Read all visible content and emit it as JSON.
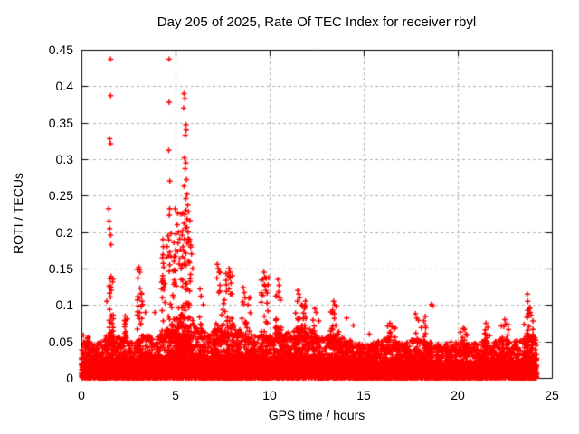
{
  "figure": {
    "background": "#ffffff",
    "border_color": "#000000",
    "grid_color": "#b0b0b0",
    "text_color": "#000000",
    "title_color": "#000000"
  },
  "chart_data": {
    "type": "scatter",
    "title": "Day 205 of 2025, Rate Of TEC Index for receiver rbyl",
    "xlabel": "GPS time / hours",
    "ylabel": "ROTI / TECUs",
    "xlim": [
      0,
      25
    ],
    "ylim": [
      0,
      0.45
    ],
    "grid": true,
    "legend": "none",
    "marker": "plus-icon",
    "marker_color": "#ff0000",
    "xticks": [
      {
        "v": 0,
        "label": "0"
      },
      {
        "v": 5,
        "label": "5"
      },
      {
        "v": 10,
        "label": "10"
      },
      {
        "v": 15,
        "label": "15"
      },
      {
        "v": 20,
        "label": "20"
      },
      {
        "v": 25,
        "label": "25"
      }
    ],
    "yticks": [
      {
        "v": 0,
        "label": "0"
      },
      {
        "v": 0.05,
        "label": "0.05"
      },
      {
        "v": 0.1,
        "label": "0.1"
      },
      {
        "v": 0.15,
        "label": "0.15"
      },
      {
        "v": 0.2,
        "label": "0.2"
      },
      {
        "v": 0.25,
        "label": "0.25"
      },
      {
        "v": 0.3,
        "label": "0.3"
      },
      {
        "v": 0.35,
        "label": "0.35"
      },
      {
        "v": 0.4,
        "label": "0.4"
      },
      {
        "v": 0.45,
        "label": "0.45"
      }
    ],
    "data_start_hour": 0,
    "data_end_hour": 24.2,
    "spike_points": [
      [
        1.55,
        0.437
      ],
      [
        1.55,
        0.387
      ],
      [
        1.5,
        0.328
      ],
      [
        1.55,
        0.321
      ],
      [
        1.45,
        0.232
      ],
      [
        1.47,
        0.215
      ],
      [
        1.5,
        0.205
      ],
      [
        1.55,
        0.196
      ],
      [
        1.57,
        0.183
      ],
      [
        1.52,
        0.136
      ],
      [
        1.56,
        0.125
      ],
      [
        1.54,
        0.111
      ],
      [
        1.5,
        0.094
      ],
      [
        1.6,
        0.085
      ],
      [
        1.35,
        0.105
      ],
      [
        2.33,
        0.085
      ],
      [
        2.37,
        0.078
      ],
      [
        2.3,
        0.07
      ],
      [
        3.05,
        0.152
      ],
      [
        3.1,
        0.145
      ],
      [
        3.0,
        0.137
      ],
      [
        3.2,
        0.115
      ],
      [
        3.22,
        0.105
      ],
      [
        3.18,
        0.098
      ],
      [
        3.4,
        0.09
      ],
      [
        3.9,
        0.09
      ],
      [
        4.33,
        0.19
      ],
      [
        4.35,
        0.18
      ],
      [
        4.3,
        0.165
      ],
      [
        4.37,
        0.152
      ],
      [
        4.32,
        0.14
      ],
      [
        4.36,
        0.125
      ],
      [
        4.3,
        0.11
      ],
      [
        4.66,
        0.437
      ],
      [
        4.66,
        0.378
      ],
      [
        4.64,
        0.312
      ],
      [
        4.7,
        0.27
      ],
      [
        4.6,
        0.195
      ],
      [
        4.55,
        0.18
      ],
      [
        4.5,
        0.165
      ],
      [
        5.45,
        0.39
      ],
      [
        5.5,
        0.383
      ],
      [
        5.43,
        0.37
      ],
      [
        5.55,
        0.347
      ],
      [
        5.57,
        0.34
      ],
      [
        5.52,
        0.333
      ],
      [
        5.47,
        0.302
      ],
      [
        5.55,
        0.295
      ],
      [
        5.51,
        0.287
      ],
      [
        5.58,
        0.272
      ],
      [
        5.45,
        0.263
      ],
      [
        5.61,
        0.252
      ],
      [
        5.55,
        0.246
      ],
      [
        5.65,
        0.237
      ],
      [
        5.56,
        0.23
      ],
      [
        5.49,
        0.224
      ],
      [
        5.61,
        0.218
      ],
      [
        5.45,
        0.212
      ],
      [
        5.55,
        0.206
      ],
      [
        5.67,
        0.2
      ],
      [
        5.35,
        0.196
      ],
      [
        5.47,
        0.19
      ],
      [
        5.61,
        0.185
      ],
      [
        5.4,
        0.18
      ],
      [
        5.27,
        0.176
      ],
      [
        5.55,
        0.171
      ],
      [
        5.37,
        0.166
      ],
      [
        5.69,
        0.16
      ],
      [
        5.47,
        0.156
      ],
      [
        5.3,
        0.15
      ],
      [
        5.17,
        0.2
      ],
      [
        5.13,
        0.185
      ],
      [
        5.0,
        0.175
      ],
      [
        4.92,
        0.16
      ],
      [
        5.75,
        0.19
      ],
      [
        5.81,
        0.182
      ],
      [
        5.85,
        0.17
      ],
      [
        5.75,
        0.158
      ],
      [
        5.91,
        0.15
      ],
      [
        5.8,
        0.142
      ],
      [
        6.3,
        0.122
      ],
      [
        6.35,
        0.112
      ],
      [
        7.22,
        0.156
      ],
      [
        7.27,
        0.15
      ],
      [
        7.32,
        0.145
      ],
      [
        7.2,
        0.137
      ],
      [
        7.36,
        0.127
      ],
      [
        7.3,
        0.117
      ],
      [
        7.7,
        0.128
      ],
      [
        7.85,
        0.15
      ],
      [
        7.9,
        0.145
      ],
      [
        7.88,
        0.138
      ],
      [
        7.95,
        0.13
      ],
      [
        8.02,
        0.14
      ],
      [
        7.84,
        0.122
      ],
      [
        7.92,
        0.115
      ],
      [
        8.6,
        0.124
      ],
      [
        8.65,
        0.117
      ],
      [
        8.7,
        0.11
      ],
      [
        8.58,
        0.104
      ],
      [
        8.85,
        0.1
      ],
      [
        9.7,
        0.145
      ],
      [
        9.75,
        0.138
      ],
      [
        9.72,
        0.128
      ],
      [
        9.8,
        0.12
      ],
      [
        9.65,
        0.113
      ],
      [
        10.45,
        0.135
      ],
      [
        10.5,
        0.127
      ],
      [
        10.48,
        0.118
      ],
      [
        10.55,
        0.11
      ],
      [
        11.5,
        0.12
      ],
      [
        11.55,
        0.115
      ],
      [
        11.6,
        0.11
      ],
      [
        11.48,
        0.105
      ],
      [
        11.7,
        0.1
      ],
      [
        11.85,
        0.095
      ],
      [
        12.4,
        0.095
      ],
      [
        12.48,
        0.09
      ],
      [
        13.4,
        0.105
      ],
      [
        13.46,
        0.1
      ],
      [
        13.55,
        0.098
      ],
      [
        13.35,
        0.093
      ],
      [
        14.1,
        0.082
      ],
      [
        14.45,
        0.072
      ],
      [
        15.3,
        0.06
      ],
      [
        16.4,
        0.075
      ],
      [
        16.5,
        0.07
      ],
      [
        17.75,
        0.088
      ],
      [
        17.82,
        0.082
      ],
      [
        18.2,
        0.078
      ],
      [
        18.6,
        0.101
      ],
      [
        18.65,
        0.099
      ],
      [
        20.3,
        0.068
      ],
      [
        21.5,
        0.075
      ],
      [
        22.5,
        0.08
      ],
      [
        22.55,
        0.074
      ],
      [
        23.7,
        0.115
      ],
      [
        23.72,
        0.105
      ],
      [
        23.8,
        0.095
      ],
      [
        23.85,
        0.09
      ],
      [
        23.9,
        0.086
      ],
      [
        24.0,
        0.078
      ]
    ],
    "cluster_fills": [
      {
        "x": [
          1.45,
          1.7
        ],
        "y": [
          0.05,
          0.14
        ],
        "count": 25,
        "bias": 1.8
      },
      {
        "x": [
          2.25,
          2.45
        ],
        "y": [
          0.05,
          0.085
        ],
        "count": 12,
        "bias": 1.5
      },
      {
        "x": [
          2.95,
          3.25
        ],
        "y": [
          0.05,
          0.15
        ],
        "count": 22,
        "bias": 1.8
      },
      {
        "x": [
          4.25,
          4.45
        ],
        "y": [
          0.05,
          0.185
        ],
        "count": 18,
        "bias": 2.0
      },
      {
        "x": [
          4.6,
          5.85
        ],
        "y": [
          0.05,
          0.235
        ],
        "count": 120,
        "bias": 2.0
      },
      {
        "x": [
          6.2,
          6.5
        ],
        "y": [
          0.05,
          0.115
        ],
        "count": 10,
        "bias": 2.0
      },
      {
        "x": [
          7.1,
          8.1
        ],
        "y": [
          0.05,
          0.15
        ],
        "count": 45,
        "bias": 2.2
      },
      {
        "x": [
          8.5,
          9.0
        ],
        "y": [
          0.05,
          0.12
        ],
        "count": 22,
        "bias": 2.0
      },
      {
        "x": [
          9.55,
          9.95
        ],
        "y": [
          0.05,
          0.14
        ],
        "count": 20,
        "bias": 2.0
      },
      {
        "x": [
          10.3,
          10.7
        ],
        "y": [
          0.05,
          0.13
        ],
        "count": 18,
        "bias": 2.0
      },
      {
        "x": [
          11.3,
          12.0
        ],
        "y": [
          0.05,
          0.115
        ],
        "count": 30,
        "bias": 2.0
      },
      {
        "x": [
          12.3,
          12.7
        ],
        "y": [
          0.05,
          0.092
        ],
        "count": 14,
        "bias": 1.8
      },
      {
        "x": [
          13.2,
          13.7
        ],
        "y": [
          0.05,
          0.1
        ],
        "count": 18,
        "bias": 1.8
      },
      {
        "x": [
          16.2,
          16.7
        ],
        "y": [
          0.05,
          0.072
        ],
        "count": 12,
        "bias": 1.5
      },
      {
        "x": [
          17.5,
          18.3
        ],
        "y": [
          0.05,
          0.085
        ],
        "count": 16,
        "bias": 1.8
      },
      {
        "x": [
          20.1,
          20.5
        ],
        "y": [
          0.05,
          0.068
        ],
        "count": 8,
        "bias": 1.5
      },
      {
        "x": [
          21.3,
          21.7
        ],
        "y": [
          0.05,
          0.072
        ],
        "count": 8,
        "bias": 1.5
      },
      {
        "x": [
          22.3,
          22.7
        ],
        "y": [
          0.05,
          0.078
        ],
        "count": 10,
        "bias": 1.5
      },
      {
        "x": [
          23.5,
          24.1
        ],
        "y": [
          0.05,
          0.098
        ],
        "count": 20,
        "bias": 1.8
      },
      {
        "x": [
          0.1,
          0.4
        ],
        "y": [
          0.04,
          0.06
        ],
        "count": 10,
        "bias": 1.5
      }
    ],
    "band": {
      "step": 0.05,
      "per_step_low": 8,
      "per_step_mid": 12,
      "low_frac": 0.45,
      "mid_exp": 2.0,
      "envelope": [
        [
          0,
          0.048
        ],
        [
          0.3,
          0.055
        ],
        [
          0.7,
          0.045
        ],
        [
          1.0,
          0.05
        ],
        [
          1.5,
          0.065
        ],
        [
          1.8,
          0.06
        ],
        [
          2.2,
          0.055
        ],
        [
          2.6,
          0.05
        ],
        [
          3.0,
          0.055
        ],
        [
          3.4,
          0.06
        ],
        [
          3.8,
          0.055
        ],
        [
          4.2,
          0.06
        ],
        [
          4.6,
          0.07
        ],
        [
          5.0,
          0.085
        ],
        [
          5.4,
          0.1
        ],
        [
          5.8,
          0.09
        ],
        [
          6.0,
          0.07
        ],
        [
          6.4,
          0.065
        ],
        [
          6.8,
          0.06
        ],
        [
          7.2,
          0.068
        ],
        [
          7.6,
          0.07
        ],
        [
          8.0,
          0.075
        ],
        [
          8.4,
          0.068
        ],
        [
          8.8,
          0.062
        ],
        [
          9.2,
          0.058
        ],
        [
          9.6,
          0.065
        ],
        [
          10.0,
          0.058
        ],
        [
          10.4,
          0.065
        ],
        [
          10.8,
          0.06
        ],
        [
          11.2,
          0.065
        ],
        [
          11.6,
          0.075
        ],
        [
          12.0,
          0.07
        ],
        [
          12.4,
          0.062
        ],
        [
          12.8,
          0.055
        ],
        [
          13.2,
          0.06
        ],
        [
          13.6,
          0.062
        ],
        [
          14.0,
          0.055
        ],
        [
          14.4,
          0.05
        ],
        [
          14.8,
          0.046
        ],
        [
          15.2,
          0.045
        ],
        [
          15.6,
          0.05
        ],
        [
          16.0,
          0.052
        ],
        [
          16.4,
          0.058
        ],
        [
          16.8,
          0.05
        ],
        [
          17.2,
          0.048
        ],
        [
          17.6,
          0.055
        ],
        [
          18.0,
          0.052
        ],
        [
          18.4,
          0.05
        ],
        [
          18.8,
          0.048
        ],
        [
          19.2,
          0.045
        ],
        [
          19.6,
          0.05
        ],
        [
          20.0,
          0.05
        ],
        [
          20.4,
          0.046
        ],
        [
          20.8,
          0.048
        ],
        [
          21.2,
          0.05
        ],
        [
          21.6,
          0.052
        ],
        [
          22.0,
          0.05
        ],
        [
          22.4,
          0.054
        ],
        [
          22.8,
          0.05
        ],
        [
          23.2,
          0.052
        ],
        [
          23.6,
          0.058
        ],
        [
          24.0,
          0.06
        ],
        [
          24.2,
          0.05
        ]
      ]
    }
  }
}
